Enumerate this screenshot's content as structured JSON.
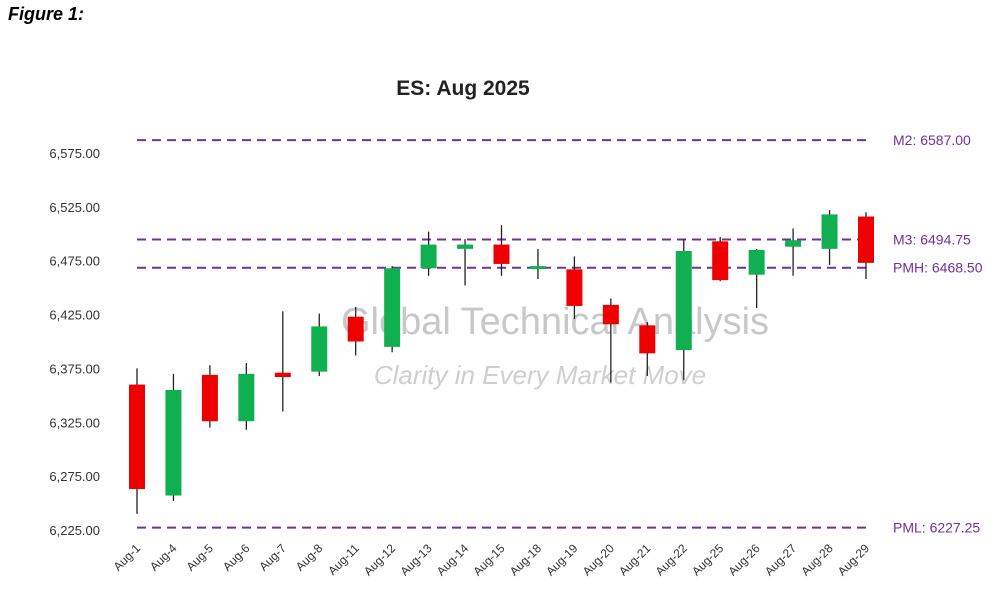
{
  "figure_label": "Figure 1:",
  "watermark": {
    "line1": "Global Technical Analysis",
    "line2": "Clarity in Every Market Move"
  },
  "colors": {
    "up": "#10b050",
    "down": "#ee0000",
    "level": "#7030a0",
    "wick": "#222222"
  },
  "chart_data": {
    "type": "candlestick",
    "title": "ES: Aug 2025",
    "ylim": [
      6225,
      6590
    ],
    "yticks": [
      6225,
      6275,
      6325,
      6375,
      6425,
      6475,
      6525,
      6575
    ],
    "ytick_labels": [
      "6,225.00",
      "6,275.00",
      "6,325.00",
      "6,375.00",
      "6,425.00",
      "6,475.00",
      "6,525.00",
      "6,575.00"
    ],
    "grid": false,
    "levels": [
      {
        "label": "M2: 6587.00",
        "value": 6587.0
      },
      {
        "label": "M3: 6494.75",
        "value": 6494.75
      },
      {
        "label": "PMH: 6468.50",
        "value": 6468.5
      },
      {
        "label": "PML: 6227.25",
        "value": 6227.25
      }
    ],
    "candles": [
      {
        "date": "Aug-1",
        "open": 6360,
        "high": 6375,
        "low": 6240,
        "close": 6263
      },
      {
        "date": "Aug-4",
        "open": 6257,
        "high": 6370,
        "low": 6252,
        "close": 6355
      },
      {
        "date": "Aug-5",
        "open": 6369,
        "high": 6378,
        "low": 6320,
        "close": 6326
      },
      {
        "date": "Aug-6",
        "open": 6326,
        "high": 6380,
        "low": 6318,
        "close": 6370
      },
      {
        "date": "Aug-7",
        "open": 6371,
        "high": 6428,
        "low": 6335,
        "close": 6367
      },
      {
        "date": "Aug-8",
        "open": 6372,
        "high": 6426,
        "low": 6368,
        "close": 6414
      },
      {
        "date": "Aug-11",
        "open": 6423,
        "high": 6432,
        "low": 6387,
        "close": 6400
      },
      {
        "date": "Aug-12",
        "open": 6395,
        "high": 6470,
        "low": 6390,
        "close": 6468
      },
      {
        "date": "Aug-13",
        "open": 6468,
        "high": 6502,
        "low": 6461,
        "close": 6490
      },
      {
        "date": "Aug-14",
        "open": 6486,
        "high": 6495,
        "low": 6452,
        "close": 6490
      },
      {
        "date": "Aug-15",
        "open": 6490,
        "high": 6508,
        "low": 6461,
        "close": 6472
      },
      {
        "date": "Aug-18",
        "open": 6469,
        "high": 6486,
        "low": 6458,
        "close": 6470
      },
      {
        "date": "Aug-19",
        "open": 6467,
        "high": 6479,
        "low": 6421,
        "close": 6433
      },
      {
        "date": "Aug-20",
        "open": 6434,
        "high": 6440,
        "low": 6362,
        "close": 6416
      },
      {
        "date": "Aug-21",
        "open": 6415,
        "high": 6418,
        "low": 6368,
        "close": 6389
      },
      {
        "date": "Aug-22",
        "open": 6392,
        "high": 6495,
        "low": 6364,
        "close": 6484
      },
      {
        "date": "Aug-25",
        "open": 6493,
        "high": 6497,
        "low": 6456,
        "close": 6457
      },
      {
        "date": "Aug-26",
        "open": 6462,
        "high": 6486,
        "low": 6431,
        "close": 6485
      },
      {
        "date": "Aug-27",
        "open": 6488,
        "high": 6505,
        "low": 6461,
        "close": 6494
      },
      {
        "date": "Aug-28",
        "open": 6486,
        "high": 6522,
        "low": 6471,
        "close": 6518
      },
      {
        "date": "Aug-29",
        "open": 6516,
        "high": 6520,
        "low": 6458,
        "close": 6473
      }
    ]
  }
}
